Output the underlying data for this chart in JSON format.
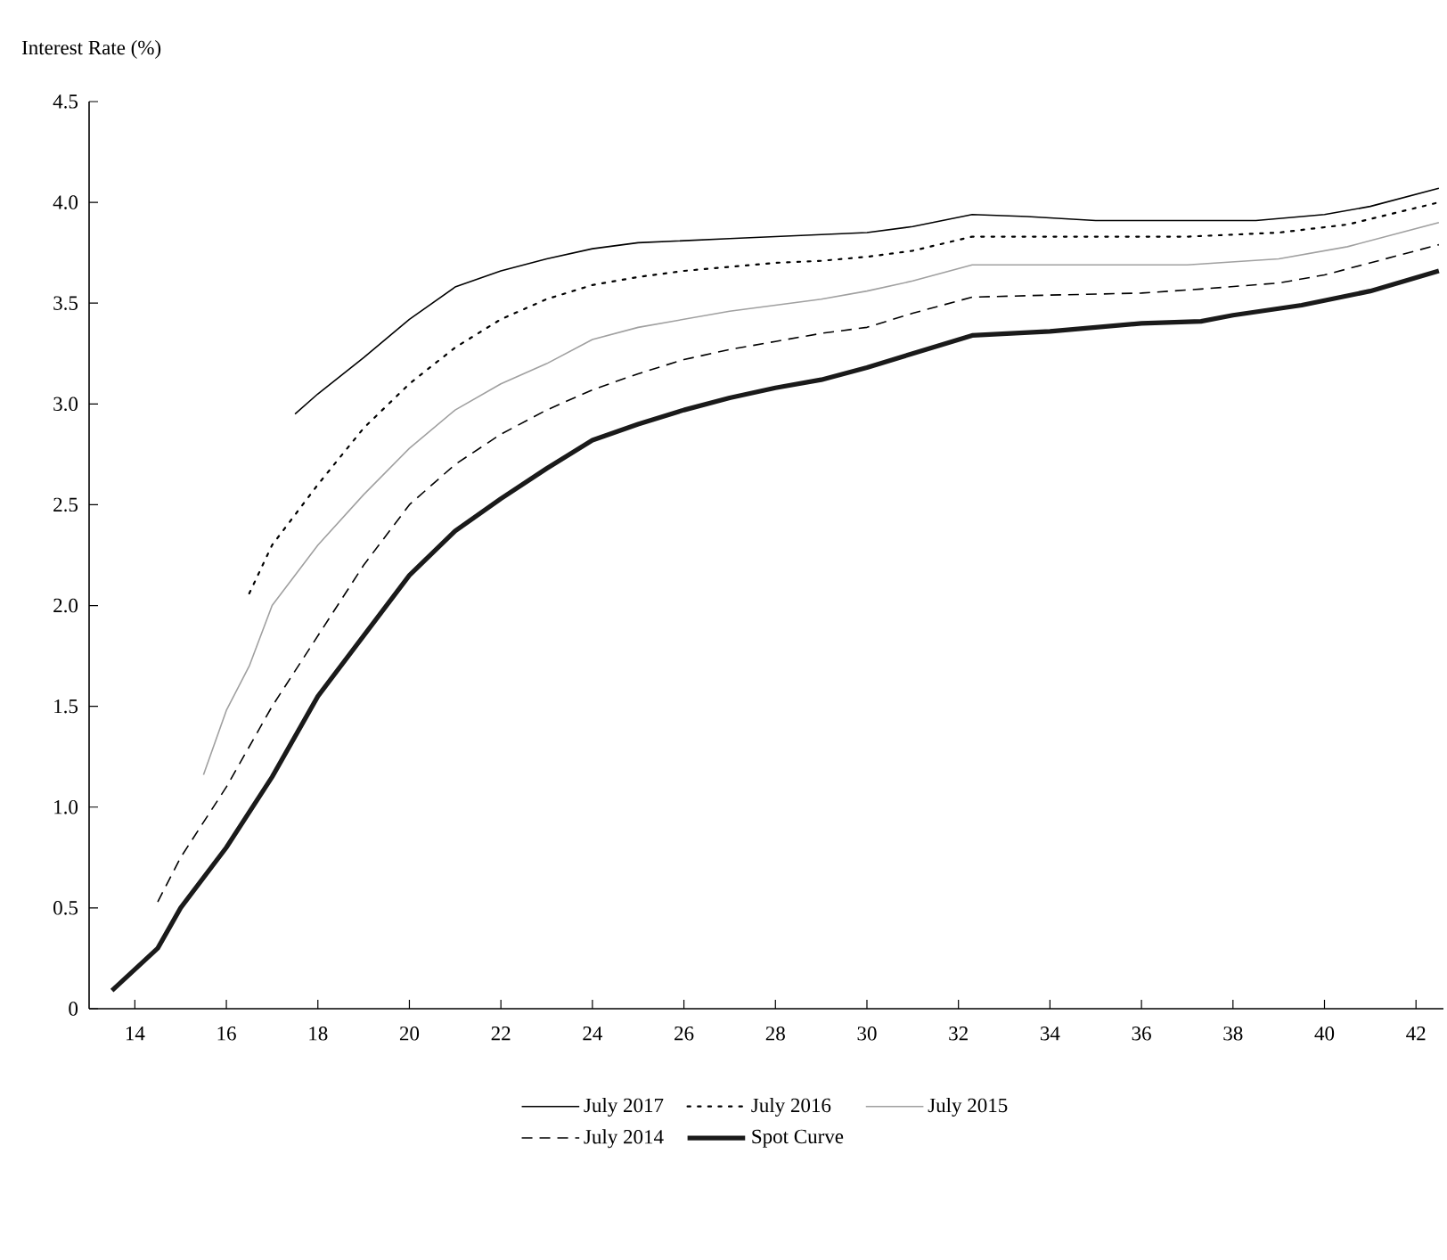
{
  "chart_data": {
    "type": "line",
    "ylabel": "Interest Rate (%)",
    "xlim": [
      13,
      42.6
    ],
    "ylim": [
      0,
      4.5
    ],
    "xticks": [
      14,
      16,
      18,
      20,
      22,
      24,
      26,
      28,
      30,
      32,
      34,
      36,
      38,
      40,
      42
    ],
    "yticks": [
      0,
      {
        "value": 0.5,
        "label": "0.5"
      },
      {
        "value": 1,
        "label": "1.0"
      },
      {
        "value": 1.5,
        "label": "1.5"
      },
      {
        "value": 2,
        "label": "2.0"
      },
      {
        "value": 2.5,
        "label": "2.5"
      },
      {
        "value": 3,
        "label": "3.0"
      },
      {
        "value": 3.5,
        "label": "3.5"
      },
      {
        "value": 4,
        "label": "4.0"
      },
      {
        "value": 4.5,
        "label": "4.5"
      }
    ],
    "grid": false,
    "legend": "bottom",
    "marker": "none",
    "series": [
      {
        "name": "July 2017",
        "color": "#000000",
        "line_style": "solid",
        "x": [
          17.5,
          18,
          19,
          20,
          21,
          22,
          23,
          24,
          25,
          26,
          27,
          28,
          29,
          30,
          31,
          32.3,
          33.5,
          35,
          37,
          38.5,
          40,
          41,
          42.5
        ],
        "values": [
          2.95,
          3.05,
          3.23,
          3.42,
          3.58,
          3.66,
          3.72,
          3.77,
          3.8,
          3.81,
          3.82,
          3.83,
          3.84,
          3.85,
          3.88,
          3.94,
          3.93,
          3.91,
          3.91,
          3.91,
          3.94,
          3.98,
          4.07
        ]
      },
      {
        "name": "July 2016",
        "color": "#000000",
        "line_style": "dotted",
        "x": [
          16.5,
          17,
          18,
          19,
          20,
          21,
          22,
          23,
          24,
          25,
          26,
          27,
          28,
          29,
          30,
          31,
          32.3,
          34,
          37,
          39,
          40.5,
          42.5
        ],
        "values": [
          2.06,
          2.3,
          2.6,
          2.88,
          3.1,
          3.28,
          3.42,
          3.52,
          3.59,
          3.63,
          3.66,
          3.68,
          3.7,
          3.71,
          3.73,
          3.76,
          3.83,
          3.83,
          3.83,
          3.85,
          3.89,
          4.0
        ]
      },
      {
        "name": "July 2015",
        "color": "#a0a0a0",
        "line_style": "solid",
        "x": [
          15.5,
          16,
          16.5,
          17,
          18,
          19,
          20,
          21,
          22,
          23,
          24,
          25,
          26,
          27,
          28,
          29,
          30,
          31,
          32.3,
          34,
          37,
          39,
          40.5,
          42.5
        ],
        "values": [
          1.16,
          1.48,
          1.7,
          2.0,
          2.3,
          2.55,
          2.78,
          2.97,
          3.1,
          3.2,
          3.32,
          3.38,
          3.42,
          3.46,
          3.49,
          3.52,
          3.56,
          3.61,
          3.69,
          3.69,
          3.69,
          3.72,
          3.78,
          3.9
        ]
      },
      {
        "name": "July 2014",
        "color": "#000000",
        "line_style": "dashed",
        "x": [
          14.5,
          15,
          16,
          17,
          18,
          19,
          20,
          21,
          22,
          23,
          24,
          25,
          26,
          27,
          28,
          29,
          30,
          31,
          32.3,
          34,
          36,
          37.3,
          39,
          40,
          41,
          42.5
        ],
        "values": [
          0.53,
          0.75,
          1.1,
          1.5,
          1.85,
          2.2,
          2.5,
          2.7,
          2.85,
          2.97,
          3.07,
          3.15,
          3.22,
          3.27,
          3.31,
          3.35,
          3.38,
          3.45,
          3.53,
          3.54,
          3.55,
          3.57,
          3.6,
          3.64,
          3.7,
          3.79
        ]
      },
      {
        "name": "Spot Curve",
        "color": "#1a1a1a",
        "line_style": "solid",
        "x": [
          13.5,
          14.5,
          15,
          16,
          17,
          18,
          19,
          20,
          21,
          22,
          23,
          24,
          25,
          26,
          27,
          28,
          29,
          30,
          31,
          32.3,
          34,
          36,
          37.3,
          38,
          39.5,
          41,
          42.5
        ],
        "values": [
          0.09,
          0.3,
          0.5,
          0.8,
          1.15,
          1.55,
          1.85,
          2.15,
          2.37,
          2.53,
          2.68,
          2.82,
          2.9,
          2.97,
          3.03,
          3.08,
          3.12,
          3.18,
          3.25,
          3.34,
          3.36,
          3.4,
          3.41,
          3.44,
          3.49,
          3.56,
          3.66
        ]
      }
    ]
  }
}
